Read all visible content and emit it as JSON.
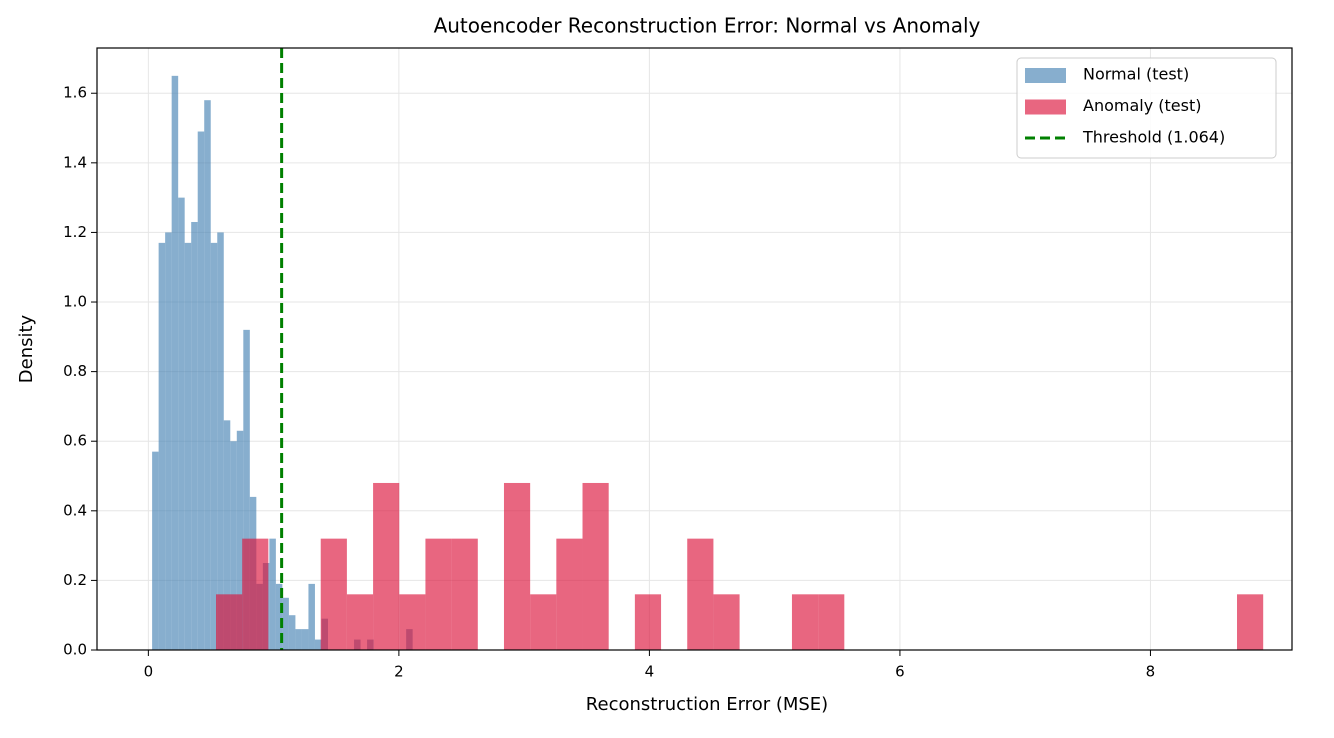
{
  "chart_data": {
    "type": "histogram",
    "title": "Autoencoder Reconstruction Error: Normal vs Anomaly",
    "xlabel": "Reconstruction Error (MSE)",
    "ylabel": "Density",
    "xlim": [
      -0.41,
      9.13
    ],
    "ylim": [
      0,
      1.73
    ],
    "xticks": [
      0,
      2,
      4,
      6,
      8
    ],
    "yticks": [
      {
        "value": 0,
        "label": "0.0"
      },
      0.2,
      0.4,
      0.6,
      0.8,
      {
        "value": 1,
        "label": "1.0"
      },
      1.2,
      1.4,
      1.6
    ],
    "grid": true,
    "legend": "upper-right",
    "alpha": 0.65,
    "series": [
      {
        "name": "Normal (test)",
        "color": "#4682b4",
        "bins": [
          0.03,
          0.082,
          0.134,
          0.186,
          0.238,
          0.29,
          0.342,
          0.394,
          0.446,
          0.498,
          0.55,
          0.602,
          0.654,
          0.706,
          0.758,
          0.81,
          0.862,
          0.914,
          0.966,
          1.018,
          1.07,
          1.122,
          1.174,
          1.226,
          1.278,
          1.33,
          1.382,
          1.434,
          1.486,
          1.538,
          1.59,
          1.642,
          1.694,
          1.746,
          1.798,
          1.85,
          1.902,
          1.954,
          2.006,
          2.058,
          2.11
        ],
        "values": [
          0.57,
          1.17,
          1.2,
          1.65,
          1.3,
          1.17,
          1.23,
          1.49,
          1.58,
          1.17,
          1.2,
          0.66,
          0.6,
          0.63,
          0.92,
          0.44,
          0.19,
          0.25,
          0.32,
          0.19,
          0.15,
          0.1,
          0.06,
          0.06,
          0.19,
          0.03,
          0.09,
          0,
          0,
          0,
          0,
          0.03,
          0,
          0.03,
          0,
          0,
          0,
          0,
          0,
          0.06
        ]
      },
      {
        "name": "Anomaly (test)",
        "color": "#dc143c",
        "bins": [
          0.54,
          0.749,
          0.958,
          1.167,
          1.376,
          1.585,
          1.794,
          2.003,
          2.212,
          2.421,
          2.63,
          2.839,
          3.048,
          3.257,
          3.466,
          3.675,
          3.884,
          4.093,
          4.302,
          4.511,
          4.72,
          4.929,
          5.138,
          5.347,
          5.556,
          5.765,
          5.974,
          6.183,
          6.392,
          6.601,
          6.81,
          7.019,
          7.228,
          7.437,
          7.646,
          7.855,
          8.064,
          8.273,
          8.482,
          8.691,
          8.9
        ],
        "values": [
          0.16,
          0.32,
          0,
          0,
          0.32,
          0.16,
          0.48,
          0.16,
          0.32,
          0.32,
          0,
          0.48,
          0.16,
          0.32,
          0.48,
          0,
          0.16,
          0,
          0.32,
          0.16,
          0,
          0,
          0.16,
          0.16,
          0,
          0,
          0,
          0,
          0,
          0,
          0,
          0,
          0,
          0,
          0,
          0,
          0,
          0,
          0,
          0.16
        ]
      }
    ],
    "threshold": {
      "value": 1.064,
      "label": "Threshold (1.064)",
      "color": "#008000"
    }
  }
}
